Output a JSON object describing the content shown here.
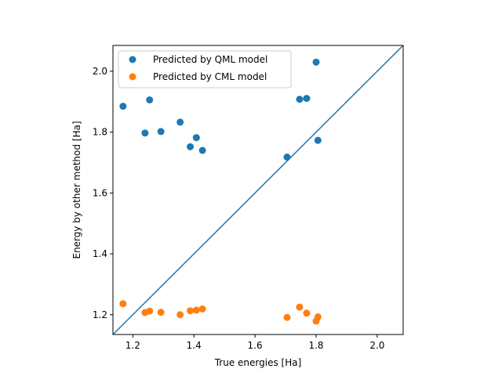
{
  "chart_data": {
    "type": "scatter",
    "title": "",
    "xlabel": "True energies [Ha]",
    "ylabel": "Energy by other method [Ha]",
    "xlim": [
      1.135,
      2.085
    ],
    "ylim": [
      1.135,
      2.085
    ],
    "xticks": [
      "1.2",
      "1.4",
      "1.6",
      "1.8",
      "2.0"
    ],
    "yticks": [
      "1.2",
      "1.4",
      "1.6",
      "1.8",
      "2.0"
    ],
    "grid": false,
    "legend_position": "upper-left",
    "reference_line": {
      "label": "",
      "color": "#1f77b4",
      "slope": 1,
      "intercept": 0
    },
    "series": [
      {
        "name": "Predicted by QML model",
        "color": "#1f77b4",
        "points": [
          [
            1.168,
            1.885
          ],
          [
            1.24,
            1.797
          ],
          [
            1.255,
            1.906
          ],
          [
            1.292,
            1.802
          ],
          [
            1.355,
            1.833
          ],
          [
            1.388,
            1.752
          ],
          [
            1.408,
            1.782
          ],
          [
            1.428,
            1.74
          ],
          [
            1.705,
            1.718
          ],
          [
            1.746,
            1.908
          ],
          [
            1.769,
            1.911
          ],
          [
            1.8,
            2.03
          ],
          [
            1.806,
            1.773
          ]
        ]
      },
      {
        "name": "Predicted by CML model",
        "color": "#ff7f0e",
        "points": [
          [
            1.168,
            1.236
          ],
          [
            1.24,
            1.207
          ],
          [
            1.255,
            1.212
          ],
          [
            1.292,
            1.208
          ],
          [
            1.355,
            1.2
          ],
          [
            1.388,
            1.213
          ],
          [
            1.408,
            1.215
          ],
          [
            1.428,
            1.219
          ],
          [
            1.705,
            1.191
          ],
          [
            1.746,
            1.225
          ],
          [
            1.769,
            1.205
          ],
          [
            1.8,
            1.179
          ],
          [
            1.806,
            1.193
          ]
        ]
      }
    ]
  }
}
